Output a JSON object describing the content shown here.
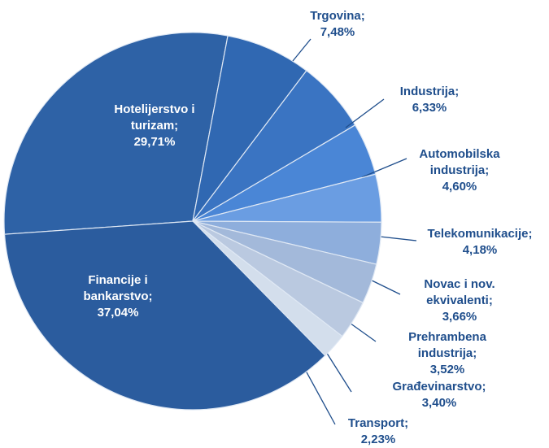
{
  "chart_data": {
    "type": "pie",
    "categories": [
      "Hotelijerstvo i turizam;",
      "Trgovina;",
      "Industrija;",
      "Automobilska industrija;",
      "Telekomunikacije;",
      "Novac i nov. ekvivalenti;",
      "Prehrambena industrija;",
      "Građevinarstvo;",
      "Transport;",
      "Financije i bankarstvo;"
    ],
    "values": [
      29.71,
      7.48,
      6.33,
      4.6,
      4.18,
      3.66,
      3.52,
      3.4,
      2.23,
      37.04
    ],
    "value_labels": [
      "29,71%",
      "7,48%",
      "6,33%",
      "4,60%",
      "4,18%",
      "3,66%",
      "3,52%",
      "3,40%",
      "2,23%",
      "37,04%"
    ],
    "colors": [
      "#2e62a6",
      "#3068b2",
      "#3a74c2",
      "#4a86d6",
      "#6a9de2",
      "#8eaedc",
      "#a3b9da",
      "#bac9e0",
      "#d3deec",
      "#2b5c9e"
    ]
  }
}
